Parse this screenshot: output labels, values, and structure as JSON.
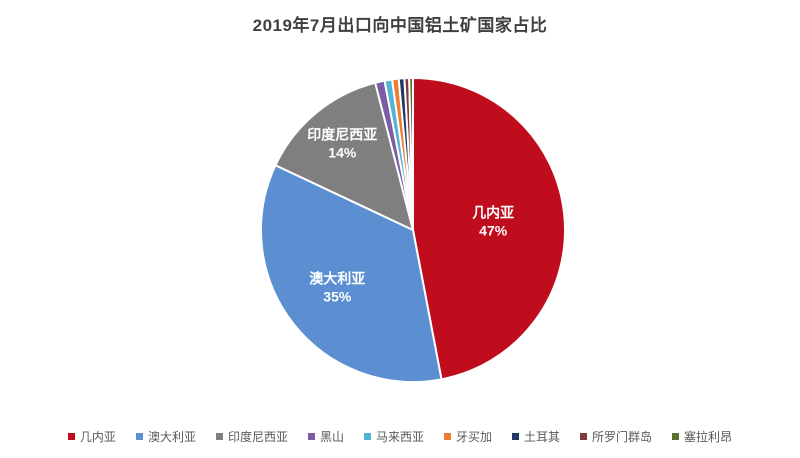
{
  "header": {
    "title": "2019年7月出口向中国铝土矿国家占比"
  },
  "chart_data": {
    "type": "pie",
    "title": "2019年7月出口向中国铝土矿国家占比",
    "labels": [
      "几内亚",
      "澳大利亚",
      "印度尼西亚",
      "黑山",
      "马来西亚",
      "牙买加",
      "土耳其",
      "所罗门群岛",
      "塞拉利昂"
    ],
    "values": [
      47,
      35,
      14,
      1.0,
      0.8,
      0.7,
      0.6,
      0.5,
      0.4
    ],
    "displayed_slice_labels": [
      {
        "name": "几内亚",
        "percent": "47%"
      },
      {
        "name": "澳大利亚",
        "percent": "35%"
      },
      {
        "name": "印度尼西亚",
        "percent": "14%"
      }
    ],
    "colors": [
      "#C00D1E",
      "#5B8FD2",
      "#7F7F7F",
      "#7B5CA5",
      "#52B4D4",
      "#ED7D31",
      "#1F3864",
      "#7E3A3C",
      "#5C6E2D"
    ],
    "slice_label_color": "#ffffff",
    "start_angle_deg": 0,
    "direction": "clockwise",
    "legend_position": "bottom",
    "background": "#ffffff"
  }
}
